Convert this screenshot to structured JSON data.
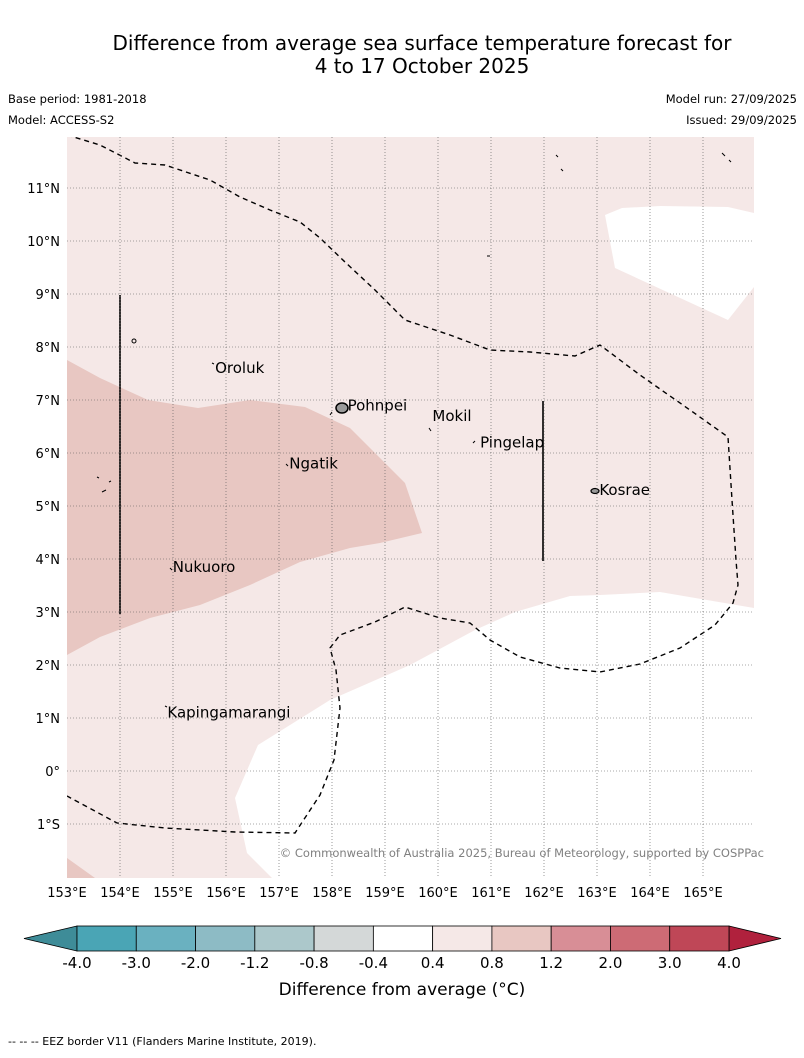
{
  "title_line1": "Difference from average sea surface temperature forecast for",
  "title_line2": "4 to 17 October 2025",
  "base_period": "Base period: 1981-2018",
  "model": "Model: ACCESS-S2",
  "model_run": "Model run: 27/09/2025",
  "issued": "Issued: 29/09/2025",
  "copyright": "© Commonwealth of Australia 2025, Bureau of Meteorology, supported by COSPPac",
  "footer": "-- --  -- EEZ border V11 (Flanders Marine Institute, 2019).",
  "map": {
    "lon_range": [
      153,
      166
    ],
    "lat_range": [
      -2,
      12
    ],
    "lon_labels": [
      "153°E",
      "154°E",
      "155°E",
      "156°E",
      "157°E",
      "158°E",
      "159°E",
      "160°E",
      "161°E",
      "162°E",
      "163°E",
      "164°E",
      "165°E"
    ],
    "lat_labels": [
      "11°N",
      "10°N",
      "9°N",
      "8°N",
      "7°N",
      "6°N",
      "5°N",
      "4°N",
      "3°N",
      "2°N",
      "1°N",
      "0°",
      "1°S"
    ],
    "places": [
      {
        "name": "Oroluk",
        "lon": 155.7,
        "lat": 7.6
      },
      {
        "name": "Pohnpei",
        "lon": 158.2,
        "lat": 6.9
      },
      {
        "name": "Mokil",
        "lon": 159.8,
        "lat": 6.7
      },
      {
        "name": "Pingelap",
        "lon": 160.7,
        "lat": 6.2
      },
      {
        "name": "Ngatik",
        "lon": 157.1,
        "lat": 5.8
      },
      {
        "name": "Kosrae",
        "lon": 162.95,
        "lat": 5.3
      },
      {
        "name": "Nukuoro",
        "lon": 154.9,
        "lat": 3.85
      },
      {
        "name": "Kapingamarangi",
        "lon": 154.8,
        "lat": 1.1
      }
    ]
  },
  "colorbar": {
    "title": "Difference from average ($^\\circ$C)",
    "title_display": "Difference from average (°C)",
    "tick_labels": [
      "-4.0",
      "-3.0",
      "-2.0",
      "-1.2",
      "-0.8",
      "-0.4",
      "0.4",
      "0.8",
      "1.2",
      "2.0",
      "3.0",
      "4.0"
    ],
    "colors": [
      "#4aa5b5",
      "#6ab1c0",
      "#8dbbc5",
      "#acc8cb",
      "#d4d8d8",
      "#ffffff",
      "#f5e8e7",
      "#e8c7c2",
      "#d88e96",
      "#cd6b75",
      "#bf4757"
    ],
    "under_color": "#3e8c98",
    "over_color": "#b0213d"
  },
  "legend_colors": {
    "light_anomaly": "#f5e8e7",
    "mid_anomaly": "#e8c7c2",
    "neutral": "#ffffff"
  }
}
